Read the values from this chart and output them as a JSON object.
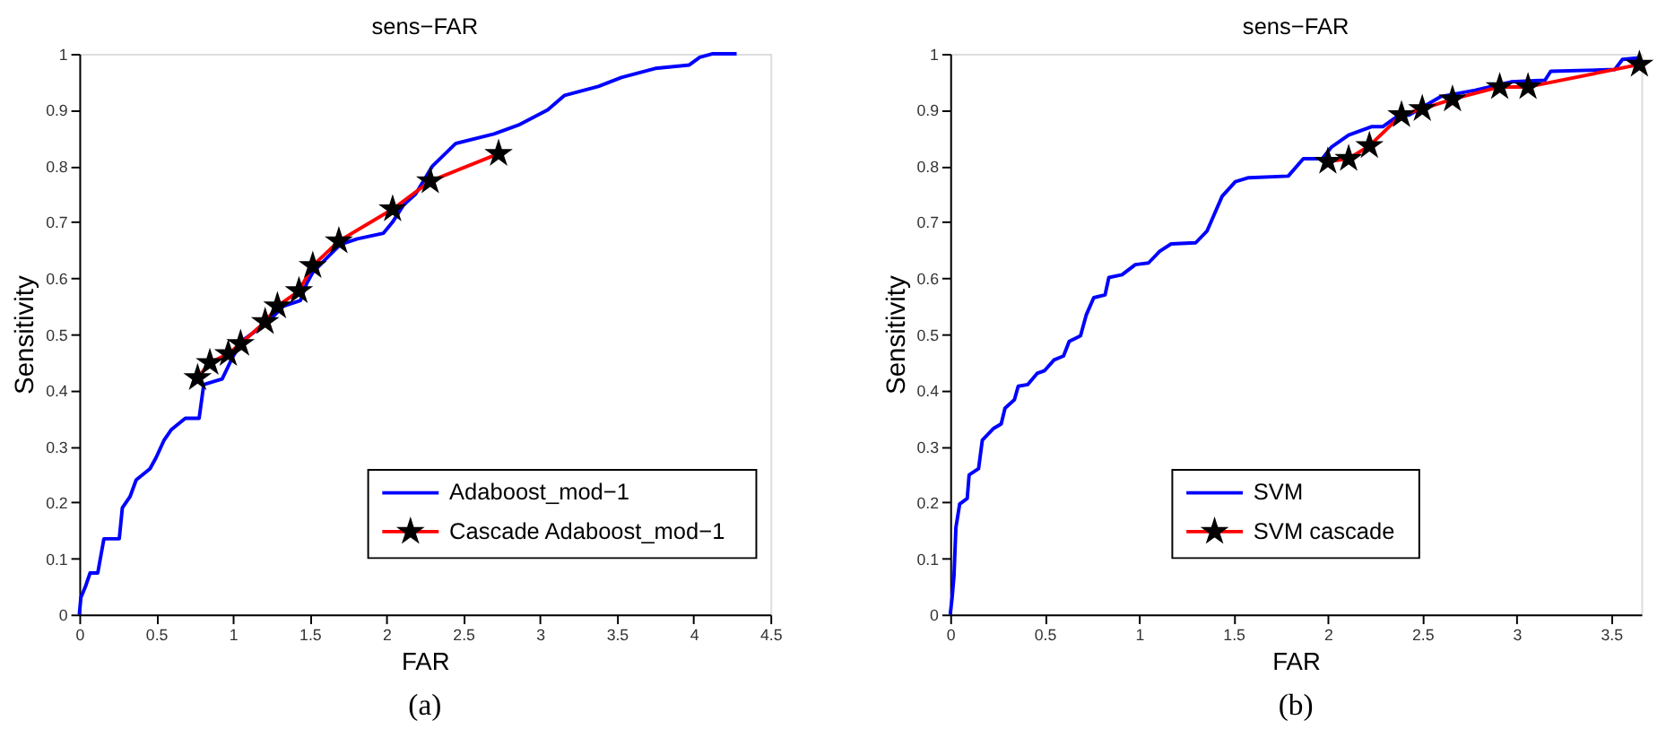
{
  "chart_data": [
    {
      "type": "line",
      "title": "sens−FAR",
      "xlabel": "FAR",
      "ylabel": "Sensitivity",
      "xlim": [
        0,
        4.5
      ],
      "ylim": [
        0,
        1
      ],
      "xticks": [
        0,
        0.5,
        1,
        1.5,
        2,
        2.5,
        3,
        3.5,
        4,
        4.5
      ],
      "yticks": [
        0,
        0.1,
        0.2,
        0.3,
        0.4,
        0.5,
        0.6,
        0.7,
        0.8,
        0.9,
        1
      ],
      "grid": false,
      "legend": "bottom right",
      "annotations": [
        "(a)"
      ],
      "series": [
        {
          "name": "Adaboost_mod−1",
          "color": "#0000ff",
          "marker": "none",
          "x": [
            0,
            0.01,
            0.04,
            0.07,
            0.12,
            0.16,
            0.26,
            0.28,
            0.33,
            0.37,
            0.46,
            0.5,
            0.55,
            0.6,
            0.69,
            0.78,
            0.81,
            0.93,
            1.0,
            1.07,
            1.22,
            1.33,
            1.44,
            1.48,
            1.52,
            1.59,
            1.7,
            1.81,
            1.98,
            2.04,
            2.11,
            2.19,
            2.3,
            2.45,
            2.7,
            2.86,
            3.05,
            3.16,
            3.38,
            3.53,
            3.75,
            3.97,
            4.04,
            4.12,
            4.28
          ],
          "values": [
            0,
            0.03,
            0.05,
            0.074,
            0.074,
            0.135,
            0.135,
            0.19,
            0.21,
            0.24,
            0.26,
            0.28,
            0.31,
            0.33,
            0.35,
            0.35,
            0.41,
            0.42,
            0.46,
            0.49,
            0.52,
            0.55,
            0.56,
            0.59,
            0.61,
            0.63,
            0.66,
            0.67,
            0.68,
            0.7,
            0.73,
            0.75,
            0.8,
            0.84,
            0.857,
            0.873,
            0.9,
            0.926,
            0.942,
            0.958,
            0.974,
            0.98,
            0.994,
            1.0,
            1.0
          ]
        },
        {
          "name": "Cascade Adaboost_mod−1",
          "color": "#ff0000",
          "marker": "star",
          "x": [
            0.77,
            0.85,
            0.97,
            1.05,
            1.21,
            1.29,
            1.43,
            1.52,
            1.69,
            2.04,
            2.285,
            2.73
          ],
          "values": [
            0.422,
            0.449,
            0.465,
            0.483,
            0.522,
            0.55,
            0.577,
            0.622,
            0.666,
            0.723,
            0.773,
            0.822
          ]
        }
      ]
    },
    {
      "type": "line",
      "title": "sens−FAR",
      "xlabel": "FAR",
      "ylabel": "Sensitivity",
      "xlim": [
        0,
        3.66
      ],
      "ylim": [
        0,
        1
      ],
      "xticks": [
        0,
        0.5,
        1,
        1.5,
        2,
        2.5,
        3,
        3.5
      ],
      "yticks": [
        0,
        0.1,
        0.2,
        0.3,
        0.4,
        0.5,
        0.6,
        0.7,
        0.8,
        0.9,
        1
      ],
      "grid": false,
      "legend": "bottom",
      "annotations": [
        "(b)"
      ],
      "series": [
        {
          "name": "SVM",
          "color": "#0000ff",
          "marker": "none",
          "x": [
            0,
            0.01,
            0.02,
            0.03,
            0.05,
            0.09,
            0.1,
            0.15,
            0.17,
            0.23,
            0.27,
            0.29,
            0.34,
            0.36,
            0.41,
            0.46,
            0.5,
            0.55,
            0.6,
            0.63,
            0.69,
            0.72,
            0.76,
            0.82,
            0.84,
            0.91,
            0.98,
            1.05,
            1.11,
            1.17,
            1.3,
            1.36,
            1.4,
            1.44,
            1.51,
            1.58,
            1.79,
            1.87,
            1.97,
            2.02,
            2.11,
            2.23,
            2.29,
            2.37,
            2.43,
            2.6,
            2.78,
            2.97,
            3.15,
            3.18,
            3.52,
            3.56,
            3.65
          ],
          "values": [
            0,
            0.03,
            0.07,
            0.155,
            0.197,
            0.207,
            0.249,
            0.26,
            0.311,
            0.332,
            0.34,
            0.368,
            0.383,
            0.407,
            0.41,
            0.43,
            0.435,
            0.454,
            0.461,
            0.487,
            0.497,
            0.534,
            0.565,
            0.57,
            0.601,
            0.606,
            0.624,
            0.627,
            0.648,
            0.661,
            0.663,
            0.684,
            0.715,
            0.746,
            0.772,
            0.779,
            0.782,
            0.813,
            0.813,
            0.834,
            0.855,
            0.87,
            0.87,
            0.889,
            0.891,
            0.924,
            0.935,
            0.95,
            0.953,
            0.969,
            0.972,
            0.99,
            0.993
          ]
        },
        {
          "name": "SVM cascade",
          "color": "#ff0000",
          "marker": "star",
          "x": [
            2.0,
            2.11,
            2.22,
            2.39,
            2.5,
            2.66,
            2.91,
            3.06,
            3.65
          ],
          "values": [
            0.808,
            0.813,
            0.836,
            0.891,
            0.902,
            0.919,
            0.941,
            0.941,
            0.981
          ]
        }
      ]
    }
  ]
}
